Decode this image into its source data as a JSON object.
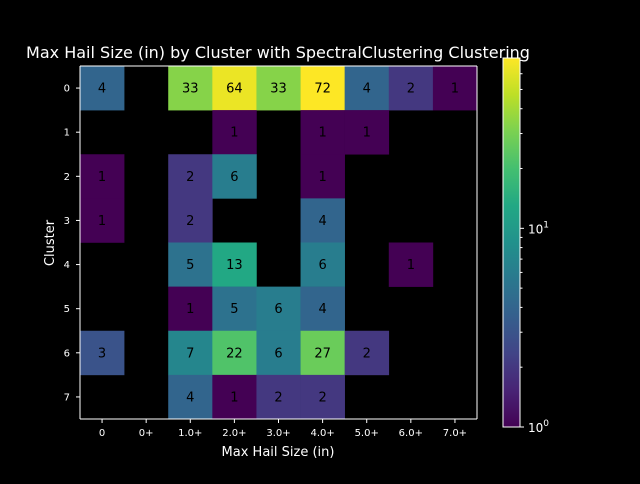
{
  "chart_data": {
    "type": "heatmap",
    "title": "Max Hail Size (in) by Cluster with SpectralClustering Clustering",
    "xlabel": "Max Hail Size (in)",
    "ylabel": "Cluster",
    "x_categories": [
      "0",
      "0+",
      "1.0+",
      "2.0+",
      "3.0+",
      "4.0+",
      "5.0+",
      "6.0+",
      "7.0+"
    ],
    "y_categories": [
      "0",
      "1",
      "2",
      "3",
      "4",
      "5",
      "6",
      "7"
    ],
    "values": [
      [
        4,
        null,
        33,
        64,
        33,
        72,
        4,
        2,
        1
      ],
      [
        null,
        null,
        null,
        1,
        null,
        1,
        1,
        null,
        null
      ],
      [
        1,
        null,
        2,
        6,
        null,
        1,
        null,
        null,
        null
      ],
      [
        1,
        null,
        2,
        null,
        null,
        4,
        null,
        null,
        null
      ],
      [
        null,
        null,
        5,
        13,
        null,
        6,
        null,
        1,
        null
      ],
      [
        null,
        null,
        1,
        5,
        6,
        4,
        null,
        null,
        null
      ],
      [
        3,
        null,
        7,
        22,
        6,
        27,
        2,
        null,
        null
      ],
      [
        null,
        null,
        4,
        1,
        2,
        2,
        null,
        null,
        null
      ]
    ],
    "colormap": "viridis",
    "color_scale": "log",
    "vmin": 1,
    "vmax": 72,
    "colorbar_ticks": [
      {
        "value": 1,
        "base": "10",
        "exp": "0"
      },
      {
        "value": 10,
        "base": "10",
        "exp": "1"
      }
    ],
    "background_color": "#000000",
    "text_color": "#ffffff",
    "grid": false
  }
}
